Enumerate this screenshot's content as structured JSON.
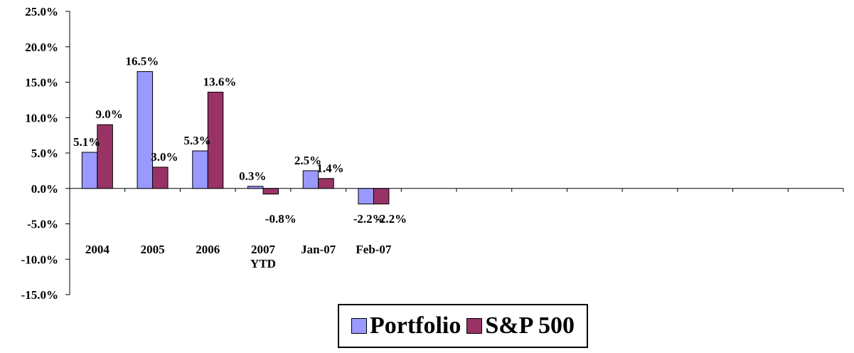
{
  "chart_data": {
    "type": "bar",
    "categories": [
      "2004",
      "2005",
      "2006",
      "2007 YTD",
      "Jan-07",
      "Feb-07"
    ],
    "category_lines": [
      [
        "2004"
      ],
      [
        "2005"
      ],
      [
        "2006"
      ],
      [
        "2007",
        "YTD"
      ],
      [
        "Jan-07"
      ],
      [
        "Feb-07"
      ]
    ],
    "empty_slots": 8,
    "series": [
      {
        "name": "Portfolio",
        "values": [
          5.1,
          16.5,
          5.3,
          0.3,
          2.5,
          -2.2
        ],
        "labels": [
          "5.1%",
          "16.5%",
          "5.3%",
          "0.3%",
          "2.5%",
          "-2.2%"
        ],
        "color": "#9999ff"
      },
      {
        "name": "S&P 500",
        "values": [
          9.0,
          3.0,
          13.6,
          -0.8,
          1.4,
          -2.2
        ],
        "labels": [
          "9.0%",
          "3.0%",
          "13.6%",
          "-0.8%",
          "1.4%",
          "-2.2%"
        ],
        "color": "#993366"
      }
    ],
    "yticks": [
      25,
      20,
      15,
      10,
      5,
      0,
      -5,
      -10,
      -15
    ],
    "ytick_labels": [
      "25.0%",
      "20.0%",
      "15.0%",
      "10.0%",
      "5.0%",
      "0.0%",
      "-5.0%",
      "-10.0%",
      "-15.0%"
    ],
    "ylim": [
      -15,
      25
    ],
    "title": "",
    "xlabel": "",
    "ylabel": "",
    "grid": false,
    "legend_position": "bottom-center"
  }
}
